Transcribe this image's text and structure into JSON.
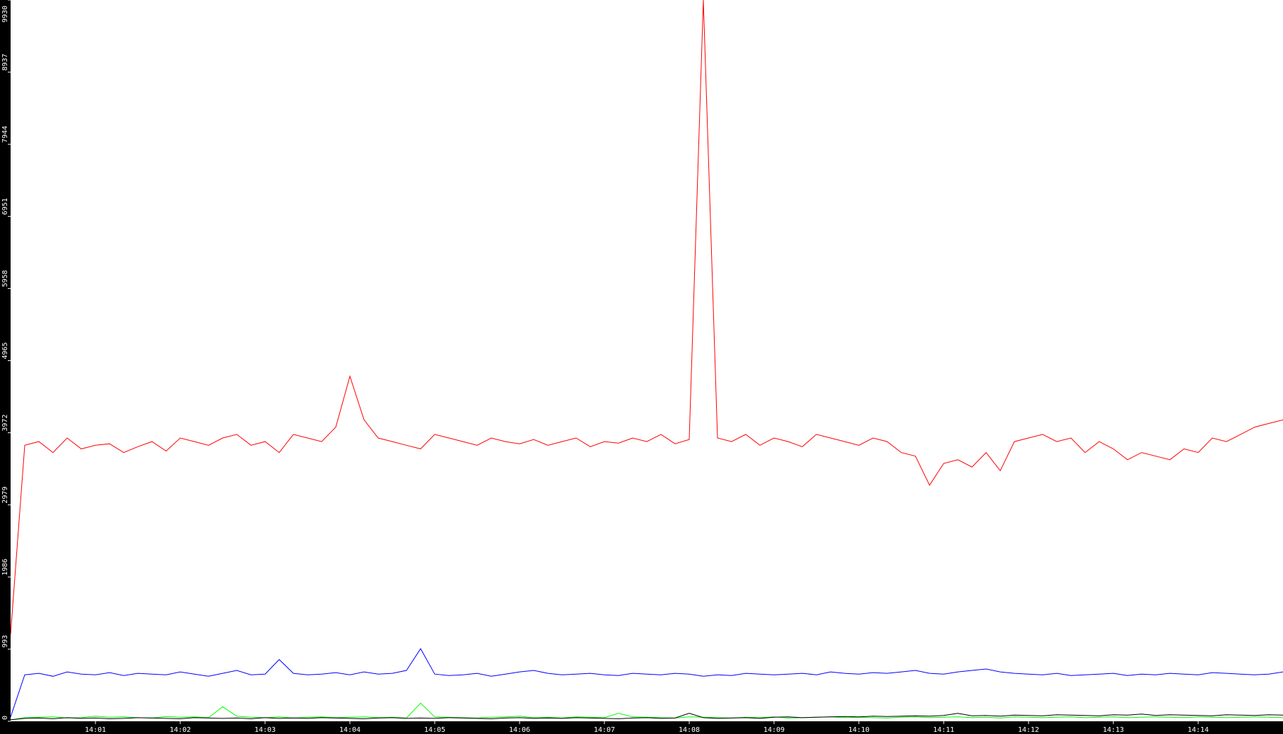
{
  "chart_data": {
    "type": "line",
    "title": "",
    "xlabel": "",
    "ylabel": "",
    "x_start": "14:00:00",
    "x_end": "14:15:00",
    "sample_interval_seconds": 10,
    "ylim": [
      0,
      9930
    ],
    "yticks": [
      "0",
      "993",
      "1986",
      "2979",
      "3972",
      "4965",
      "5958",
      "6951",
      "7944",
      "8937",
      "9930"
    ],
    "xticks": [
      "14:01",
      "14:02",
      "14:03",
      "14:04",
      "14:05",
      "14:06",
      "14:07",
      "14:08",
      "14:09",
      "14:10",
      "14:11",
      "14:12",
      "14:13",
      "14:14"
    ],
    "grid": false,
    "background": "#ffffff",
    "axis_color": "#000000",
    "series": [
      {
        "color": "#ff0000",
        "values": [
          1200,
          3800,
          3850,
          3700,
          3900,
          3750,
          3800,
          3820,
          3700,
          3780,
          3850,
          3720,
          3900,
          3850,
          3800,
          3900,
          3950,
          3800,
          3850,
          3700,
          3950,
          3900,
          3850,
          4050,
          4750,
          4150,
          3900,
          3850,
          3800,
          3750,
          3950,
          3900,
          3850,
          3800,
          3900,
          3850,
          3820,
          3880,
          3800,
          3850,
          3900,
          3780,
          3850,
          3830,
          3900,
          3850,
          3950,
          3820,
          3880,
          9930,
          3900,
          3850,
          3950,
          3800,
          3900,
          3850,
          3780,
          3950,
          3900,
          3850,
          3800,
          3900,
          3850,
          3700,
          3650,
          3250,
          3550,
          3600,
          3500,
          3700,
          3450,
          3850,
          3900,
          3950,
          3850,
          3900,
          3700,
          3850,
          3750,
          3600,
          3700,
          3650,
          3600,
          3750,
          3700,
          3900,
          3850,
          3950,
          4050,
          4100,
          4150
        ]
      },
      {
        "color": "#0000ff",
        "values": [
          60,
          640,
          660,
          620,
          680,
          650,
          640,
          670,
          630,
          660,
          650,
          640,
          680,
          650,
          620,
          660,
          700,
          640,
          650,
          850,
          660,
          640,
          650,
          670,
          640,
          680,
          650,
          660,
          700,
          1000,
          650,
          630,
          640,
          660,
          620,
          650,
          680,
          700,
          660,
          640,
          650,
          660,
          640,
          630,
          660,
          650,
          640,
          660,
          650,
          620,
          640,
          630,
          660,
          650,
          640,
          650,
          660,
          640,
          680,
          660,
          650,
          670,
          660,
          680,
          700,
          660,
          650,
          680,
          700,
          720,
          680,
          660,
          650,
          640,
          660,
          630,
          640,
          650,
          660,
          630,
          650,
          640,
          660,
          650,
          640,
          670,
          660,
          650,
          640,
          650,
          680
        ]
      },
      {
        "color": "#00ff00",
        "values": [
          20,
          50,
          55,
          60,
          45,
          50,
          70,
          55,
          60,
          50,
          45,
          65,
          55,
          60,
          50,
          200,
          70,
          55,
          50,
          60,
          45,
          55,
          60,
          50,
          55,
          60,
          50,
          55,
          45,
          250,
          60,
          55,
          50,
          45,
          55,
          60,
          70,
          50,
          55,
          45,
          60,
          55,
          50,
          110,
          60,
          55,
          50,
          45,
          60,
          55,
          50,
          45,
          55,
          50,
          60,
          45,
          50,
          55,
          60,
          50,
          55,
          50,
          45,
          55,
          60,
          50,
          55,
          60,
          50,
          55,
          45,
          60,
          55,
          50,
          55,
          60,
          50,
          55,
          60,
          50,
          55,
          60,
          55,
          50,
          60,
          55,
          50,
          55,
          60,
          55,
          50
        ]
      },
      {
        "color": "#000000",
        "values": [
          20,
          40,
          45,
          35,
          50,
          40,
          45,
          35,
          40,
          50,
          45,
          40,
          35,
          50,
          45,
          40,
          45,
          35,
          50,
          40,
          45,
          40,
          50,
          45,
          40,
          35,
          45,
          50,
          40,
          45,
          40,
          50,
          45,
          40,
          35,
          45,
          50,
          40,
          45,
          40,
          50,
          45,
          40,
          35,
          45,
          50,
          40,
          45,
          110,
          50,
          40,
          45,
          50,
          40,
          55,
          60,
          50,
          55,
          60,
          65,
          60,
          70,
          65,
          70,
          75,
          70,
          80,
          110,
          75,
          80,
          70,
          85,
          80,
          75,
          90,
          85,
          80,
          75,
          90,
          85,
          100,
          80,
          90,
          85,
          80,
          75,
          90,
          85,
          80,
          90,
          85
        ]
      }
    ]
  }
}
